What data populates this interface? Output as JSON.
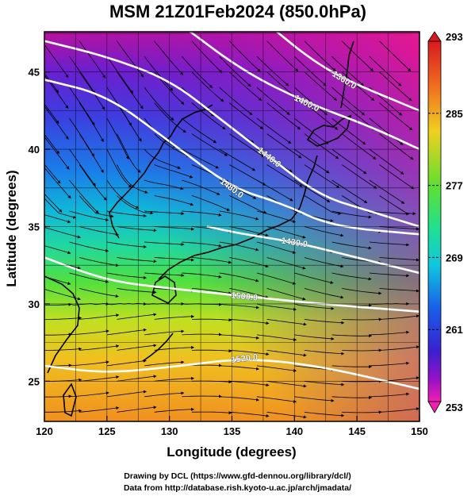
{
  "title": "MSM 21Z01Feb2024 (850.0hPa)",
  "xlabel": "Longitude (degrees)",
  "ylabel": "Latitude  (degrees)",
  "x_ticks": [
    "120",
    "125",
    "130",
    "135",
    "140",
    "145",
    "150"
  ],
  "y_ticks": [
    "25",
    "30",
    "35",
    "40",
    "45"
  ],
  "colorbar_ticks": [
    "293",
    "285",
    "277",
    "269",
    "261",
    "253"
  ],
  "contour_labels": [
    "1480.0",
    "1440.0",
    "1400.0",
    "1360.0",
    "1430.0",
    "1500.0",
    "1520.0"
  ],
  "credit_line1": "Drawing by DCL (https://www.gfd-dennou.org/library/dcl/)",
  "credit_line2": "Data from http://database.rish.kyoto-u.ac.jp/arch/jmadata/",
  "chart_data": {
    "type": "heatmap",
    "title": "MSM 21Z01Feb2024 (850.0hPa)",
    "xlabel": "Longitude (degrees)",
    "ylabel": "Latitude  (degrees)",
    "xlim": [
      120,
      150
    ],
    "ylim": [
      22.4,
      47.6
    ],
    "grid": true,
    "colorbar": {
      "range": [
        253,
        293
      ],
      "ticks": [
        293,
        285,
        277,
        269,
        261,
        253
      ]
    },
    "temperature_field_samples": [
      {
        "lon": 122,
        "lat": 46,
        "value": 260
      },
      {
        "lon": 135,
        "lat": 44,
        "value": 259
      },
      {
        "lon": 146,
        "lat": 46,
        "value": 254
      },
      {
        "lon": 122,
        "lat": 40,
        "value": 266
      },
      {
        "lon": 136,
        "lat": 40,
        "value": 262
      },
      {
        "lon": 148,
        "lat": 40,
        "value": 258
      },
      {
        "lon": 122,
        "lat": 35,
        "value": 270
      },
      {
        "lon": 135,
        "lat": 35,
        "value": 271
      },
      {
        "lon": 148,
        "lat": 35,
        "value": 267
      },
      {
        "lon": 122,
        "lat": 30,
        "value": 277
      },
      {
        "lon": 136,
        "lat": 30,
        "value": 278
      },
      {
        "lon": 148,
        "lat": 30,
        "value": 275
      },
      {
        "lon": 122,
        "lat": 25,
        "value": 284
      },
      {
        "lon": 136,
        "lat": 25,
        "value": 286
      },
      {
        "lon": 148,
        "lat": 25,
        "value": 285
      }
    ],
    "geopotential_contours": [
      {
        "label": "1360.0",
        "points": [
          [
            138,
            48
          ],
          [
            141,
            46
          ],
          [
            144,
            44.5
          ],
          [
            150,
            42.5
          ]
        ]
      },
      {
        "label": "1400.0",
        "points": [
          [
            131,
            48
          ],
          [
            136,
            45
          ],
          [
            141,
            43
          ],
          [
            146,
            41.5
          ],
          [
            150,
            40
          ]
        ]
      },
      {
        "label": "1440.0",
        "points": [
          [
            120,
            47
          ],
          [
            125,
            46
          ],
          [
            130,
            44.5
          ],
          [
            134,
            42
          ],
          [
            138,
            39.5
          ],
          [
            142,
            37
          ],
          [
            146,
            36
          ],
          [
            150,
            35
          ]
        ]
      },
      {
        "label": "1480.0",
        "points": [
          [
            120,
            44.5
          ],
          [
            125,
            43.5
          ],
          [
            130,
            40.5
          ],
          [
            135,
            37.5
          ],
          [
            139,
            36.5
          ],
          [
            143,
            35
          ],
          [
            150,
            34.5
          ]
        ]
      },
      {
        "label": "1430.0",
        "points": [
          [
            133,
            35
          ],
          [
            136,
            34.5
          ],
          [
            140,
            34
          ],
          [
            145,
            33
          ],
          [
            150,
            32
          ]
        ]
      },
      {
        "label": "1500.0",
        "points": [
          [
            120,
            33
          ],
          [
            125,
            31.5
          ],
          [
            130,
            31
          ],
          [
            136,
            30.5
          ],
          [
            142,
            30
          ],
          [
            150,
            29.5
          ]
        ]
      },
      {
        "label": "1520.0",
        "points": [
          [
            120,
            26
          ],
          [
            125,
            25.5
          ],
          [
            131,
            26
          ],
          [
            136,
            26.5
          ],
          [
            142,
            26
          ],
          [
            150,
            24.5
          ]
        ]
      }
    ]
  }
}
